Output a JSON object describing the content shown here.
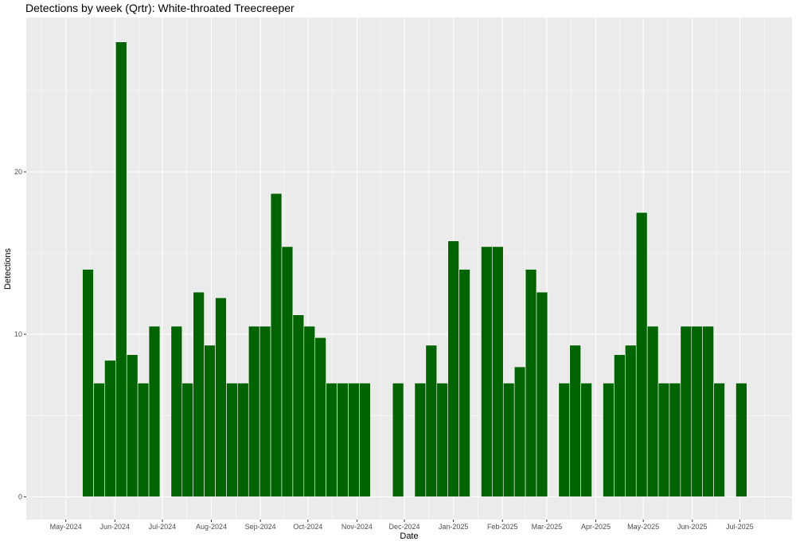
{
  "chart_data": {
    "type": "bar",
    "title": "Detections by week (Qrtr): White-throated Treecreeper",
    "xlabel": "Date",
    "ylabel": "Detections",
    "x_ticks": [
      {
        "label": "May-2024",
        "date": "2024-05-01"
      },
      {
        "label": "Jun-2024",
        "date": "2024-06-01"
      },
      {
        "label": "Jul-2024",
        "date": "2024-07-01"
      },
      {
        "label": "Aug-2024",
        "date": "2024-08-01"
      },
      {
        "label": "Sep-2024",
        "date": "2024-09-01"
      },
      {
        "label": "Oct-2024",
        "date": "2024-10-01"
      },
      {
        "label": "Nov-2024",
        "date": "2024-11-01"
      },
      {
        "label": "Dec-2024",
        "date": "2024-12-01"
      },
      {
        "label": "Jan-2025",
        "date": "2025-01-01"
      },
      {
        "label": "Feb-2025",
        "date": "2025-02-01"
      },
      {
        "label": "Mar-2025",
        "date": "2025-03-01"
      },
      {
        "label": "Apr-2025",
        "date": "2025-04-01"
      },
      {
        "label": "May-2025",
        "date": "2025-05-01"
      },
      {
        "label": "Jun-2025",
        "date": "2025-06-01"
      },
      {
        "label": "Jul-2025",
        "date": "2025-07-01"
      }
    ],
    "y_ticks": [
      0,
      10,
      20
    ],
    "ylim": [
      -1.4,
      29.5
    ],
    "xlim": [
      "2024-04-06",
      "2025-08-03"
    ],
    "grid": true,
    "bar_color": "#006400",
    "categories": [
      "2024-05-15",
      "2024-05-22",
      "2024-05-29",
      "2024-06-05",
      "2024-06-12",
      "2024-06-19",
      "2024-06-26",
      "2024-07-10",
      "2024-07-17",
      "2024-07-24",
      "2024-07-31",
      "2024-08-07",
      "2024-08-14",
      "2024-08-21",
      "2024-08-28",
      "2024-09-04",
      "2024-09-11",
      "2024-09-18",
      "2024-09-25",
      "2024-10-02",
      "2024-10-09",
      "2024-10-16",
      "2024-10-23",
      "2024-10-30",
      "2024-11-06",
      "2024-11-27",
      "2024-12-11",
      "2024-12-18",
      "2024-12-25",
      "2025-01-01",
      "2025-01-08",
      "2025-01-22",
      "2025-01-29",
      "2025-02-05",
      "2025-02-12",
      "2025-02-19",
      "2025-02-26",
      "2025-03-12",
      "2025-03-19",
      "2025-03-26",
      "2025-04-09",
      "2025-04-16",
      "2025-04-23",
      "2025-04-30",
      "2025-05-07",
      "2025-05-14",
      "2025-05-21",
      "2025-05-28",
      "2025-06-04",
      "2025-06-11",
      "2025-06-18",
      "2025-07-02"
    ],
    "values": [
      14.0,
      7.0,
      8.4,
      28.0,
      8.75,
      7.0,
      10.5,
      10.5,
      7.0,
      12.6,
      9.33,
      12.25,
      7.0,
      7.0,
      10.5,
      10.5,
      18.67,
      15.4,
      11.2,
      10.5,
      9.8,
      7.0,
      7.0,
      7.0,
      7.0,
      7.0,
      7.0,
      9.33,
      7.0,
      15.75,
      14.0,
      15.4,
      15.4,
      7.0,
      8.0,
      14.0,
      12.6,
      7.0,
      9.33,
      7.0,
      7.0,
      8.75,
      9.33,
      17.5,
      10.5,
      7.0,
      7.0,
      10.5,
      10.5,
      10.5,
      7.0,
      7.0
    ]
  }
}
